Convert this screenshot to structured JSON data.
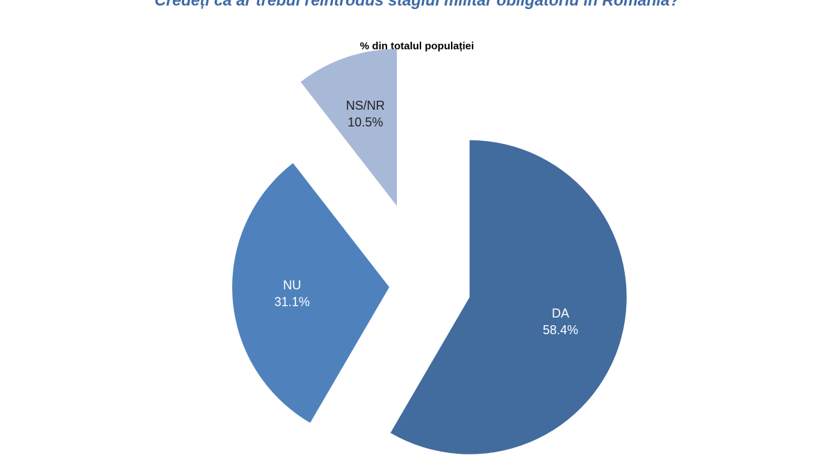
{
  "heading": "Credeți că ar trebui reintrodus stagiul militar obligatoriu în România?",
  "chart_data": {
    "type": "pie",
    "title": "% din totalul populației",
    "slices": [
      {
        "label": "DA",
        "value": 58.4,
        "value_text": "58.4%",
        "color": "#426b9e",
        "text_color": "#ffffff"
      },
      {
        "label": "NU",
        "value": 31.1,
        "value_text": "31.1%",
        "color": "#4f82bd",
        "text_color": "#ffffff"
      },
      {
        "label": "NS/NR",
        "value": 10.5,
        "value_text": "10.5%",
        "color": "#a8b9d8",
        "text_color": "#222222"
      }
    ],
    "exploded": true,
    "legend": "none"
  }
}
